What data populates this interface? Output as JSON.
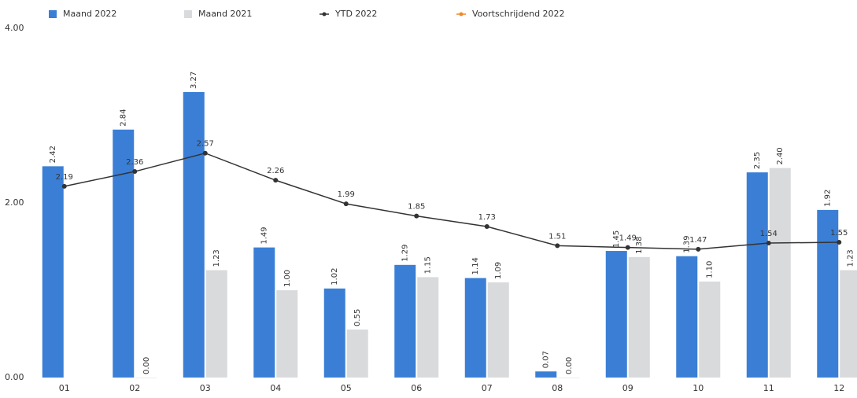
{
  "chart_data": {
    "type": "bar",
    "categories": [
      "01",
      "02",
      "03",
      "04",
      "05",
      "06",
      "07",
      "08",
      "09",
      "10",
      "11",
      "12"
    ],
    "series": [
      {
        "name": "Maand 2022",
        "color": "#3a7fd5",
        "kind": "bar",
        "values": [
          2.42,
          2.84,
          3.27,
          1.49,
          1.02,
          1.29,
          1.14,
          0.07,
          1.45,
          1.39,
          2.35,
          1.92
        ],
        "value_labels": [
          "2.42",
          "2.84",
          "3.27",
          "1.49",
          "1.02",
          "1.29",
          "1.14",
          "0.07",
          "1.45",
          "1.39",
          "2.35",
          "1.92"
        ]
      },
      {
        "name": "Maand 2021",
        "color": "#d9dadc",
        "kind": "bar",
        "values": [
          null,
          0,
          1.23,
          1.0,
          0.55,
          1.15,
          1.09,
          0,
          1.38,
          1.1,
          2.4,
          1.23
        ],
        "value_labels": [
          null,
          "0.00",
          "1.23",
          "1.00",
          "0.55",
          "1.15",
          "1.09",
          "0.00",
          "1.38",
          "1.10",
          "2.40",
          "1.23"
        ]
      },
      {
        "name": "YTD 2022",
        "color": "#333333",
        "kind": "line",
        "values": [
          2.19,
          2.36,
          2.57,
          2.26,
          1.99,
          1.85,
          1.73,
          1.51,
          1.49,
          1.47,
          1.54,
          1.55
        ]
      },
      {
        "name": "Voortschrijdend 2022",
        "color": "#f08a24",
        "kind": "line",
        "values": [
          null,
          null,
          null,
          null,
          null,
          null,
          null,
          null,
          null,
          null,
          null,
          null
        ]
      }
    ],
    "ylim": [
      0,
      4
    ],
    "yticks": [
      {
        "value": 0,
        "label": "0.00"
      },
      {
        "value": 2,
        "label": "2.00"
      },
      {
        "value": 4,
        "label": "4.00"
      }
    ],
    "grid": false
  }
}
